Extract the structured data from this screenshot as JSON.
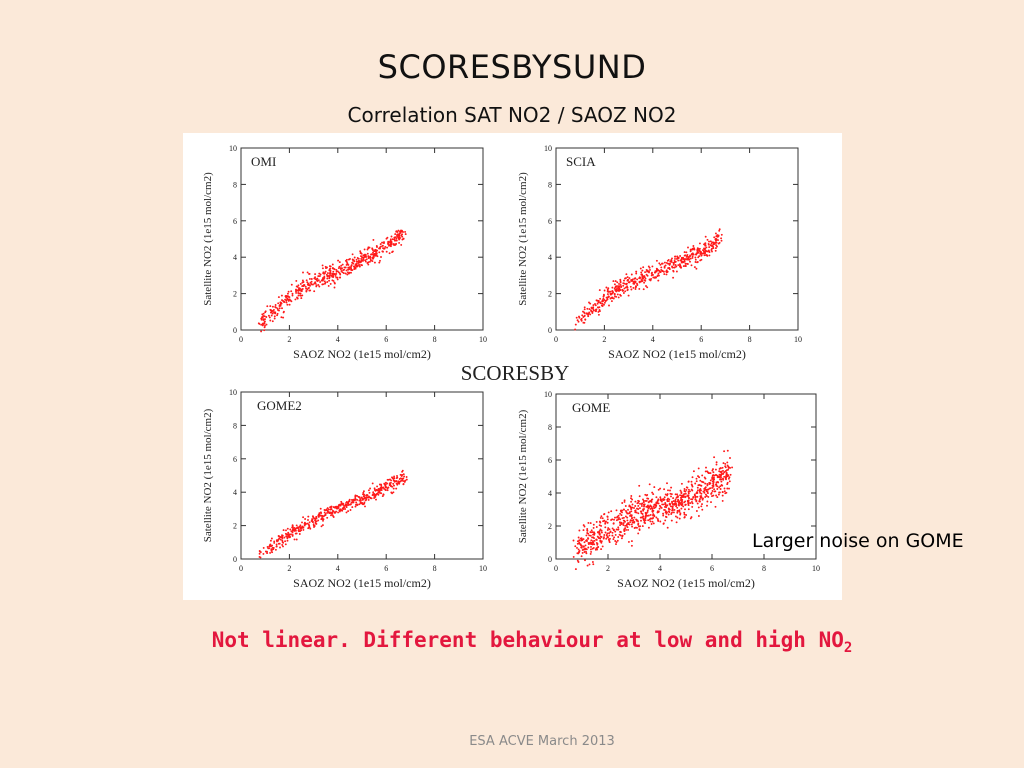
{
  "slide": {
    "title": "SCORESBYSUND",
    "subtitle": "Correlation SAT NO2 / SAOZ NO2",
    "figure_label": "SCORESBY",
    "callout": "Larger noise on GOME",
    "conclusion_main": "Not linear. Different behaviour at low and high NO",
    "conclusion_sub": "2",
    "footer": "ESA ACVE March 2013",
    "marker_color": "#ff1a1a"
  },
  "chart_data": [
    {
      "type": "scatter",
      "panel_label": "OMI",
      "xlabel": "SAOZ NO2 (1e15 mol/cm2)",
      "ylabel": "Satellite NO2 (1e15 mol/cm2)",
      "xlim": [
        0,
        10
      ],
      "ylim": [
        0,
        10
      ],
      "x_ticks": [
        0,
        2,
        4,
        6,
        8,
        10
      ],
      "y_ticks": [
        0,
        2,
        4,
        6,
        8,
        10
      ],
      "trend": [
        [
          0.8,
          0.4
        ],
        [
          1.5,
          1.2
        ],
        [
          2.2,
          2.0
        ],
        [
          3.0,
          2.7
        ],
        [
          4.0,
          3.2
        ],
        [
          5.0,
          3.9
        ],
        [
          6.0,
          4.6
        ],
        [
          6.8,
          5.4
        ]
      ],
      "x_range": [
        0.8,
        6.8
      ],
      "scatter_spread": 0.25,
      "n_points": 550
    },
    {
      "type": "scatter",
      "panel_label": "SCIA",
      "xlabel": "SAOZ NO2 (1e15 mol/cm2)",
      "ylabel": "Satellite NO2 (1e15 mol/cm2)",
      "xlim": [
        0,
        10
      ],
      "ylim": [
        0,
        10
      ],
      "x_ticks": [
        0,
        2,
        4,
        6,
        8,
        10
      ],
      "y_ticks": [
        0,
        2,
        4,
        6,
        8,
        10
      ],
      "trend": [
        [
          0.8,
          0.4
        ],
        [
          1.5,
          1.1
        ],
        [
          2.2,
          1.9
        ],
        [
          3.0,
          2.6
        ],
        [
          4.0,
          3.1
        ],
        [
          5.0,
          3.7
        ],
        [
          6.0,
          4.3
        ],
        [
          6.8,
          5.0
        ]
      ],
      "x_range": [
        0.8,
        6.8
      ],
      "scatter_spread": 0.25,
      "n_points": 550
    },
    {
      "type": "scatter",
      "panel_label": "GOME2",
      "xlabel": "SAOZ NO2 (1e15 mol/cm2)",
      "ylabel": "Satellite NO2 (1e15 mol/cm2)",
      "xlim": [
        0,
        10
      ],
      "ylim": [
        0,
        10
      ],
      "x_ticks": [
        0,
        2,
        4,
        6,
        8,
        10
      ],
      "y_ticks": [
        0,
        2,
        4,
        6,
        8,
        10
      ],
      "trend": [
        [
          0.8,
          0.3
        ],
        [
          1.5,
          0.9
        ],
        [
          2.2,
          1.6
        ],
        [
          3.0,
          2.4
        ],
        [
          4.0,
          3.0
        ],
        [
          5.0,
          3.6
        ],
        [
          6.0,
          4.3
        ],
        [
          6.8,
          4.9
        ]
      ],
      "x_range": [
        0.8,
        6.8
      ],
      "scatter_spread": 0.2,
      "n_points": 500
    },
    {
      "type": "scatter",
      "panel_label": "GOME",
      "xlabel": "SAOZ NO2 (1e15 mol/cm2)",
      "ylabel": "Satellite NO2 (1e15 mol/cm2)",
      "xlim": [
        0,
        10
      ],
      "ylim": [
        0,
        10
      ],
      "x_ticks": [
        0,
        2,
        4,
        6,
        8,
        10
      ],
      "y_ticks": [
        0,
        2,
        4,
        6,
        8,
        10
      ],
      "trend": [
        [
          0.8,
          0.6
        ],
        [
          1.5,
          1.2
        ],
        [
          2.2,
          1.9
        ],
        [
          3.0,
          2.6
        ],
        [
          3.5,
          3.0
        ],
        [
          4.5,
          3.2
        ],
        [
          5.5,
          4.0
        ],
        [
          6.0,
          4.6
        ],
        [
          6.7,
          5.2
        ]
      ],
      "x_range": [
        0.8,
        6.7
      ],
      "scatter_spread": 0.55,
      "n_points": 900
    }
  ]
}
